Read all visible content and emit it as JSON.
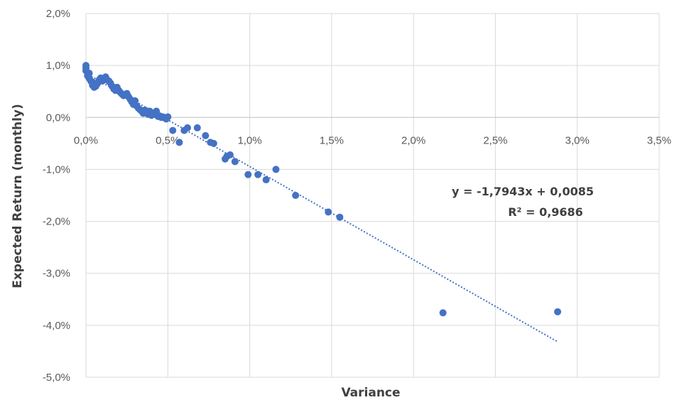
{
  "chart_data": {
    "type": "scatter",
    "title": "",
    "xlabel": "Variance",
    "ylabel": "Expected Return (monthly)",
    "xlim": [
      0,
      0.035
    ],
    "ylim": [
      -0.05,
      0.02
    ],
    "x_ticks": [
      "0,0%",
      "0,5%",
      "1,0%",
      "1,5%",
      "2,0%",
      "2,5%",
      "3,0%",
      "3,5%"
    ],
    "y_ticks": [
      "2,0%",
      "1,0%",
      "0,0%",
      "-1,0%",
      "-2,0%",
      "-3,0%",
      "-4,0%",
      "-5,0%"
    ],
    "grid": true,
    "series": [
      {
        "marker_color": "#4472c4",
        "points": [
          [
            0.0,
            0.01
          ],
          [
            0.0,
            0.0095
          ],
          [
            0.0,
            0.009
          ],
          [
            0.0001,
            0.0085
          ],
          [
            0.0001,
            0.008
          ],
          [
            0.0002,
            0.0075
          ],
          [
            0.0002,
            0.0085
          ],
          [
            0.0003,
            0.007
          ],
          [
            0.0004,
            0.0068
          ],
          [
            0.0004,
            0.0062
          ],
          [
            0.0005,
            0.0058
          ],
          [
            0.0006,
            0.006
          ],
          [
            0.0007,
            0.0065
          ],
          [
            0.0008,
            0.0072
          ],
          [
            0.0009,
            0.0076
          ],
          [
            0.001,
            0.007
          ],
          [
            0.0011,
            0.0074
          ],
          [
            0.0012,
            0.0078
          ],
          [
            0.0013,
            0.0072
          ],
          [
            0.0014,
            0.007
          ],
          [
            0.0015,
            0.0066
          ],
          [
            0.0016,
            0.006
          ],
          [
            0.0017,
            0.0055
          ],
          [
            0.0018,
            0.0052
          ],
          [
            0.0019,
            0.0058
          ],
          [
            0.002,
            0.0052
          ],
          [
            0.0021,
            0.0048
          ],
          [
            0.0022,
            0.0045
          ],
          [
            0.0023,
            0.0042
          ],
          [
            0.0024,
            0.0044
          ],
          [
            0.0025,
            0.0046
          ],
          [
            0.0026,
            0.004
          ],
          [
            0.0027,
            0.0035
          ],
          [
            0.0028,
            0.003
          ],
          [
            0.0029,
            0.0025
          ],
          [
            0.003,
            0.0032
          ],
          [
            0.0031,
            0.0022
          ],
          [
            0.0032,
            0.0018
          ],
          [
            0.0033,
            0.0015
          ],
          [
            0.0034,
            0.0012
          ],
          [
            0.0035,
            0.0008
          ],
          [
            0.0036,
            0.0014
          ],
          [
            0.0037,
            0.001
          ],
          [
            0.0038,
            0.0006
          ],
          [
            0.0039,
            0.0012
          ],
          [
            0.004,
            0.0004
          ],
          [
            0.0041,
            0.0008
          ],
          [
            0.0042,
            0.0006
          ],
          [
            0.0043,
            0.0012
          ],
          [
            0.0044,
            0.0002
          ],
          [
            0.0045,
            0.0003
          ],
          [
            0.0046,
            0.0
          ],
          [
            0.0047,
            0.0001
          ],
          [
            0.0048,
            -0.0001
          ],
          [
            0.0049,
            -0.0003
          ],
          [
            0.005,
            0.0001
          ],
          [
            0.0053,
            -0.0025
          ],
          [
            0.0057,
            -0.0048
          ],
          [
            0.006,
            -0.0025
          ],
          [
            0.0062,
            -0.002
          ],
          [
            0.0068,
            -0.002
          ],
          [
            0.0073,
            -0.0035
          ],
          [
            0.0076,
            -0.0048
          ],
          [
            0.0078,
            -0.005
          ],
          [
            0.0085,
            -0.008
          ],
          [
            0.0086,
            -0.0075
          ],
          [
            0.0088,
            -0.0072
          ],
          [
            0.0091,
            -0.0085
          ],
          [
            0.0099,
            -0.011
          ],
          [
            0.0105,
            -0.011
          ],
          [
            0.011,
            -0.012
          ],
          [
            0.0116,
            -0.01
          ],
          [
            0.0128,
            -0.015
          ],
          [
            0.0148,
            -0.0182
          ],
          [
            0.0155,
            -0.0192
          ],
          [
            0.0218,
            -0.0376
          ],
          [
            0.0288,
            -0.0374
          ]
        ]
      }
    ],
    "trendline": {
      "type": "linear",
      "slope": -1.7943,
      "intercept": 0.0085,
      "x_range": [
        0,
        0.0288
      ],
      "color": "#4472c4",
      "style": "dotted",
      "equation_label": "y = -1,7943x + 0,0085",
      "r2_label": "R² = 0,9686"
    }
  }
}
